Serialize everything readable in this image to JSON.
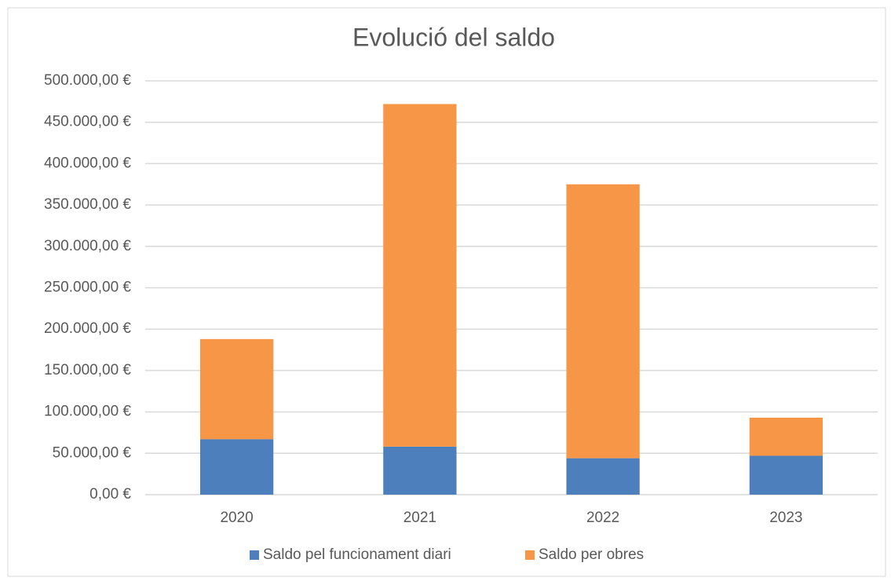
{
  "chart_data": {
    "type": "stacked_bar",
    "title": "Evolució del saldo",
    "categories": [
      "2020",
      "2021",
      "2022",
      "2023"
    ],
    "series": [
      {
        "name": "Saldo pel funcionament diari",
        "color": "#4e7fbd",
        "values": [
          67000,
          58000,
          44000,
          47000
        ]
      },
      {
        "name": "Saldo per obres",
        "color": "#f79646",
        "values": [
          121000,
          414000,
          331000,
          46000
        ]
      }
    ],
    "ylim": [
      0,
      500000
    ],
    "yticks": [
      {
        "value": 0,
        "label": "0,00 €"
      },
      {
        "value": 50000,
        "label": "50.000,00 €"
      },
      {
        "value": 100000,
        "label": "100.000,00 €"
      },
      {
        "value": 150000,
        "label": "150.000,00 €"
      },
      {
        "value": 200000,
        "label": "200.000,00 €"
      },
      {
        "value": 250000,
        "label": "250.000,00 €"
      },
      {
        "value": 300000,
        "label": "300.000,00 €"
      },
      {
        "value": 350000,
        "label": "350.000,00 €"
      },
      {
        "value": 400000,
        "label": "400.000,00 €"
      },
      {
        "value": 450000,
        "label": "450.000,00 €"
      },
      {
        "value": 500000,
        "label": "500.000,00 €"
      }
    ],
    "grid": true,
    "legend": "bottom"
  }
}
